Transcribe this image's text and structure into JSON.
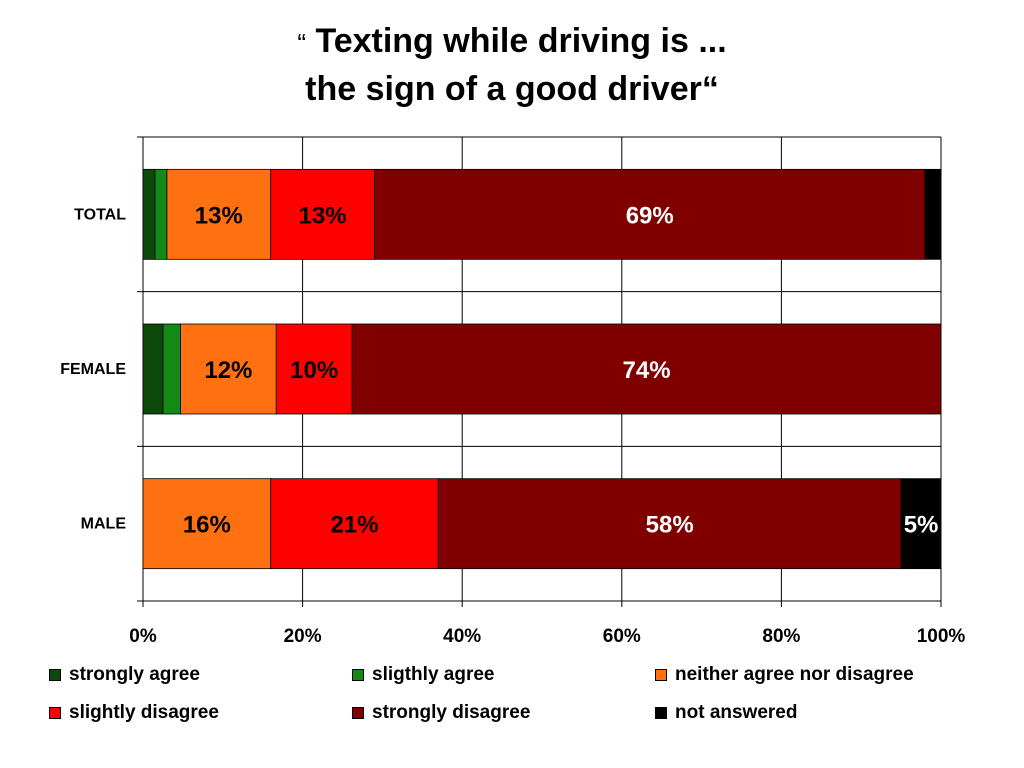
{
  "title": {
    "open_quote": "“",
    "line1": "Texting while driving is ...",
    "line2": "the sign of a good driver“"
  },
  "chart_data": {
    "type": "bar",
    "orientation": "horizontal",
    "stacked": true,
    "percent_stacked": true,
    "categories": [
      "TOTAL",
      "FEMALE",
      "MALE"
    ],
    "x_ticks": [
      "0%",
      "20%",
      "40%",
      "60%",
      "80%",
      "100%"
    ],
    "xlim": [
      0,
      100
    ],
    "grid": true,
    "legend_position": "bottom",
    "series": [
      {
        "name": "strongly agree",
        "color": "#0b4a0b",
        "values": [
          1.5,
          2.5,
          0
        ],
        "labels": [
          "",
          "",
          ""
        ]
      },
      {
        "name": "sligthly agree",
        "color": "#138a13",
        "values": [
          1.5,
          2.2,
          0
        ],
        "labels": [
          "",
          "",
          ""
        ]
      },
      {
        "name": "neither agree nor disagree",
        "color": "#ff7110",
        "values": [
          13,
          12,
          16
        ],
        "labels": [
          "13%",
          "12%",
          "16%"
        ]
      },
      {
        "name": "slightly disagree",
        "color": "#ff0000",
        "values": [
          13,
          9.5,
          21
        ],
        "labels": [
          "13%",
          "10%",
          "21%"
        ]
      },
      {
        "name": "strongly disagree",
        "color": "#800000",
        "values": [
          69,
          73.8,
          58
        ],
        "labels": [
          "69%",
          "74%",
          "58%"
        ]
      },
      {
        "name": "not answered",
        "color": "#000000",
        "values": [
          2,
          0,
          5
        ],
        "labels": [
          "",
          "",
          "5%"
        ]
      }
    ]
  }
}
